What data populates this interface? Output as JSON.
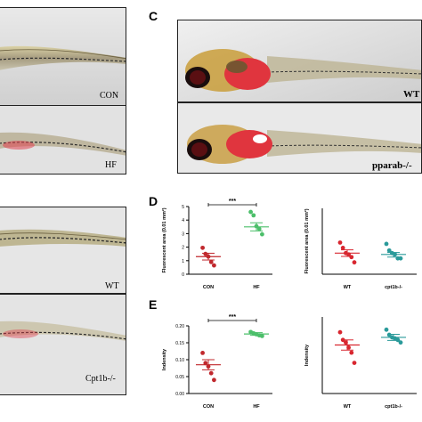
{
  "figure": {
    "panel_labels": {
      "c": "C",
      "d": "D",
      "e": "E"
    },
    "fish_labels": {
      "a_top": "CON",
      "a_bottom": "HF",
      "b_top": "WT",
      "b_bottom": "Cpt1b-/-",
      "c_top": "WT",
      "c_bottom": "pparab-/-"
    }
  },
  "chart_data": [
    {
      "id": "D-left",
      "type": "scatter",
      "categories": [
        "CON",
        "HF"
      ],
      "ylabel": "Fluorescent area (0.01 mm²)",
      "ylim": [
        0,
        5
      ],
      "yticks": [
        "0",
        "1",
        "2",
        "3",
        "4",
        "5"
      ],
      "significance": "***",
      "colors": [
        "#c0282d",
        "#4cbf6a"
      ],
      "series": [
        {
          "category": "CON",
          "points": [
            1.95,
            1.5,
            1.3,
            0.9,
            0.65
          ],
          "mean": 1.3,
          "sem_range": [
            1.05,
            1.55
          ]
        },
        {
          "category": "HF",
          "points": [
            4.6,
            4.35,
            3.55,
            3.35,
            2.95
          ],
          "mean": 3.5,
          "sem_range": [
            3.2,
            3.8
          ]
        }
      ]
    },
    {
      "id": "D-right",
      "type": "scatter",
      "categories": [
        "WT",
        "cpt1b-/-"
      ],
      "ylabel": "Fluorescent area (0.01 mm²)",
      "ylim": [
        0,
        5
      ],
      "colors": [
        "#d8262f",
        "#2a9a9a"
      ],
      "series": [
        {
          "category": "WT",
          "points": [
            2.4,
            2.0,
            1.6,
            1.5,
            1.3,
            0.9
          ],
          "mean": 1.6,
          "sem_range": [
            1.35,
            1.85
          ]
        },
        {
          "category": "cpt1b-/-",
          "points": [
            2.3,
            1.8,
            1.6,
            1.5,
            1.2,
            1.2
          ],
          "mean": 1.5,
          "sem_range": [
            1.3,
            1.65
          ]
        }
      ]
    },
    {
      "id": "E-left",
      "type": "scatter",
      "categories": [
        "CON",
        "HF"
      ],
      "ylabel": "Indensity",
      "ylim": [
        0,
        0.2
      ],
      "yticks": [
        "0.00",
        "0.05",
        "0.10",
        "0.15",
        "0.20"
      ],
      "significance": "***",
      "colors": [
        "#c0282d",
        "#4cbf6a"
      ],
      "series": [
        {
          "category": "CON",
          "points": [
            0.12,
            0.09,
            0.08,
            0.06,
            0.04
          ],
          "mean": 0.085,
          "sem_range": [
            0.07,
            0.1
          ]
        },
        {
          "category": "HF",
          "points": [
            0.182,
            0.178,
            0.175,
            0.172,
            0.17
          ],
          "mean": 0.176,
          "sem_range": [
            0.172,
            0.18
          ]
        }
      ]
    },
    {
      "id": "E-right",
      "type": "scatter",
      "categories": [
        "WT",
        "cpt1b-/-"
      ],
      "ylabel": "Indensity",
      "ylim": [
        0,
        0.15
      ],
      "colors": [
        "#d8262f",
        "#2a9a9a"
      ],
      "series": [
        {
          "category": "WT",
          "points": [
            0.12,
            0.105,
            0.1,
            0.09,
            0.08,
            0.06
          ],
          "mean": 0.095,
          "sem_range": [
            0.085,
            0.105
          ]
        },
        {
          "category": "cpt1b-/-",
          "points": [
            0.125,
            0.115,
            0.11,
            0.108,
            0.105,
            0.1
          ],
          "mean": 0.11,
          "sem_range": [
            0.104,
            0.116
          ]
        }
      ]
    }
  ]
}
